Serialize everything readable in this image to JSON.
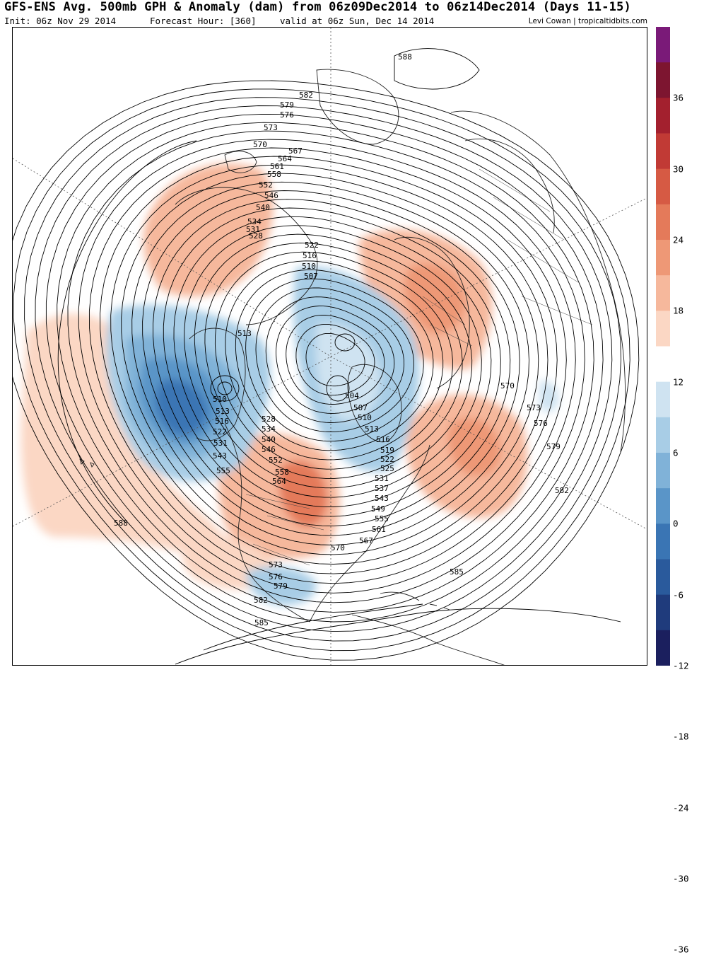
{
  "header": {
    "title": "GFS-ENS Avg. 500mb GPH & Anomaly (dam) from 06z09Dec2014 to 06z14Dec2014 (Days 11-15)",
    "init": "Init: 06z Nov 29 2014",
    "forecast_hour": "Forecast Hour: [360]",
    "valid": "valid at 06z Sun, Dec 14 2014",
    "credit": "Levi Cowan | tropicaltidbits.com"
  },
  "colorbar": {
    "labels": [
      "36",
      "30",
      "24",
      "18",
      "12",
      "6",
      "0",
      "-6",
      "-12",
      "-18",
      "-24",
      "-30",
      "-36"
    ],
    "colors": [
      "#1b1f5e",
      "#1f3b7c",
      "#2a5a9c",
      "#3a75b4",
      "#5a95c8",
      "#80b2d8",
      "#a8cde6",
      "#cfe3f1",
      "#ffffff",
      "#fbd7c4",
      "#f6b89c",
      "#ee9876",
      "#e47a5a",
      "#d65a44",
      "#c13a35",
      "#a3202e",
      "#7d1530",
      "#7a1a78"
    ]
  },
  "map": {
    "contour_labels": [
      {
        "text": "588",
        "key": "a"
      },
      {
        "text": "582",
        "key": "b"
      },
      {
        "text": "579",
        "key": "c"
      },
      {
        "text": "576",
        "key": "d"
      },
      {
        "text": "573",
        "key": "e"
      },
      {
        "text": "570",
        "key": "f"
      },
      {
        "text": "567",
        "key": "g"
      },
      {
        "text": "564",
        "key": "h"
      },
      {
        "text": "561",
        "key": "i"
      },
      {
        "text": "558",
        "key": "j"
      },
      {
        "text": "552",
        "key": "k"
      },
      {
        "text": "546",
        "key": "l"
      },
      {
        "text": "540",
        "key": "m"
      },
      {
        "text": "534",
        "key": "n"
      },
      {
        "text": "531",
        "key": "o"
      },
      {
        "text": "528",
        "key": "p"
      },
      {
        "text": "522",
        "key": "q"
      },
      {
        "text": "516",
        "key": "r"
      },
      {
        "text": "510",
        "key": "s"
      },
      {
        "text": "507",
        "key": "t"
      },
      {
        "text": "513",
        "key": "u"
      },
      {
        "text": "510",
        "key": "v"
      },
      {
        "text": "513",
        "key": "w"
      },
      {
        "text": "516",
        "key": "x"
      },
      {
        "text": "522",
        "key": "y"
      },
      {
        "text": "531",
        "key": "z"
      },
      {
        "text": "543",
        "key": "aa"
      },
      {
        "text": "555",
        "key": "ab"
      },
      {
        "text": "588",
        "key": "ac"
      },
      {
        "text": "504",
        "key": "ad"
      },
      {
        "text": "507",
        "key": "ae"
      },
      {
        "text": "510",
        "key": "af"
      },
      {
        "text": "513",
        "key": "ag"
      },
      {
        "text": "528",
        "key": "ah"
      },
      {
        "text": "534",
        "key": "ai"
      },
      {
        "text": "540",
        "key": "aj"
      },
      {
        "text": "546",
        "key": "ak"
      },
      {
        "text": "552",
        "key": "al"
      },
      {
        "text": "558",
        "key": "am"
      },
      {
        "text": "564",
        "key": "an"
      },
      {
        "text": "516",
        "key": "ao"
      },
      {
        "text": "519",
        "key": "ap"
      },
      {
        "text": "522",
        "key": "aq"
      },
      {
        "text": "525",
        "key": "ar"
      },
      {
        "text": "531",
        "key": "as"
      },
      {
        "text": "537",
        "key": "at"
      },
      {
        "text": "543",
        "key": "au"
      },
      {
        "text": "549",
        "key": "av"
      },
      {
        "text": "555",
        "key": "aw"
      },
      {
        "text": "561",
        "key": "ax"
      },
      {
        "text": "567",
        "key": "ay"
      },
      {
        "text": "570",
        "key": "az"
      },
      {
        "text": "573",
        "key": "ba"
      },
      {
        "text": "576",
        "key": "bb"
      },
      {
        "text": "579",
        "key": "bc"
      },
      {
        "text": "582",
        "key": "bd"
      },
      {
        "text": "585",
        "key": "be"
      },
      {
        "text": "585",
        "key": "bf"
      },
      {
        "text": "570",
        "key": "bg"
      },
      {
        "text": "573",
        "key": "bh"
      },
      {
        "text": "576",
        "key": "bi"
      },
      {
        "text": "579",
        "key": "bj"
      },
      {
        "text": "582",
        "key": "bk"
      }
    ]
  }
}
